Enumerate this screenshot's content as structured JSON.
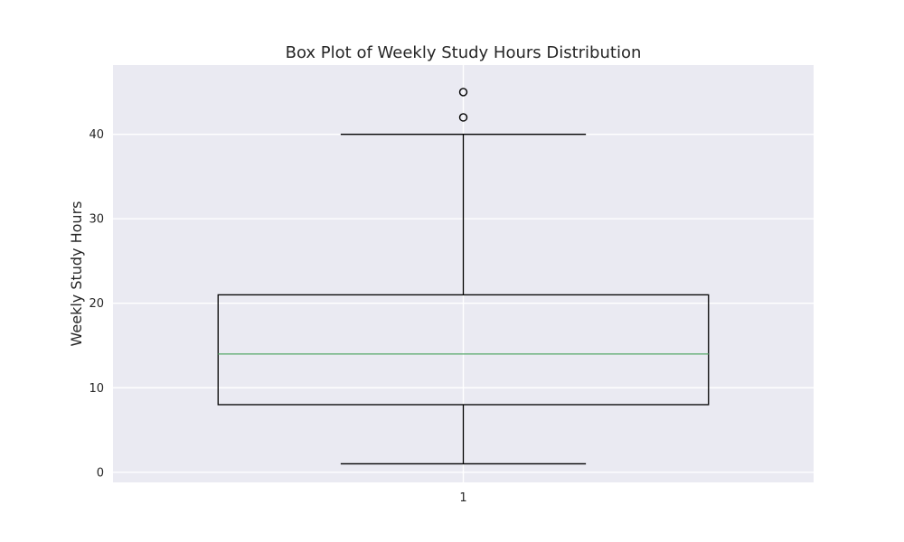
{
  "chart_data": {
    "type": "box",
    "title": "Box Plot of Weekly Study Hours Distribution",
    "xlabel": "",
    "ylabel": "Weekly Study Hours",
    "categories": [
      "1"
    ],
    "boxes": [
      {
        "category": "1",
        "whisker_low": 1,
        "q1": 8,
        "median": 14,
        "q3": 21,
        "whisker_high": 40,
        "outliers": [
          42,
          45
        ]
      }
    ],
    "ylim": [
      -1.2,
      48.2
    ],
    "yticks": [
      0,
      10,
      20,
      30,
      40
    ],
    "grid": true,
    "colors": {
      "background": "#eaeaf2",
      "grid": "#ffffff",
      "box": "#000000",
      "median": "#55a868"
    }
  }
}
